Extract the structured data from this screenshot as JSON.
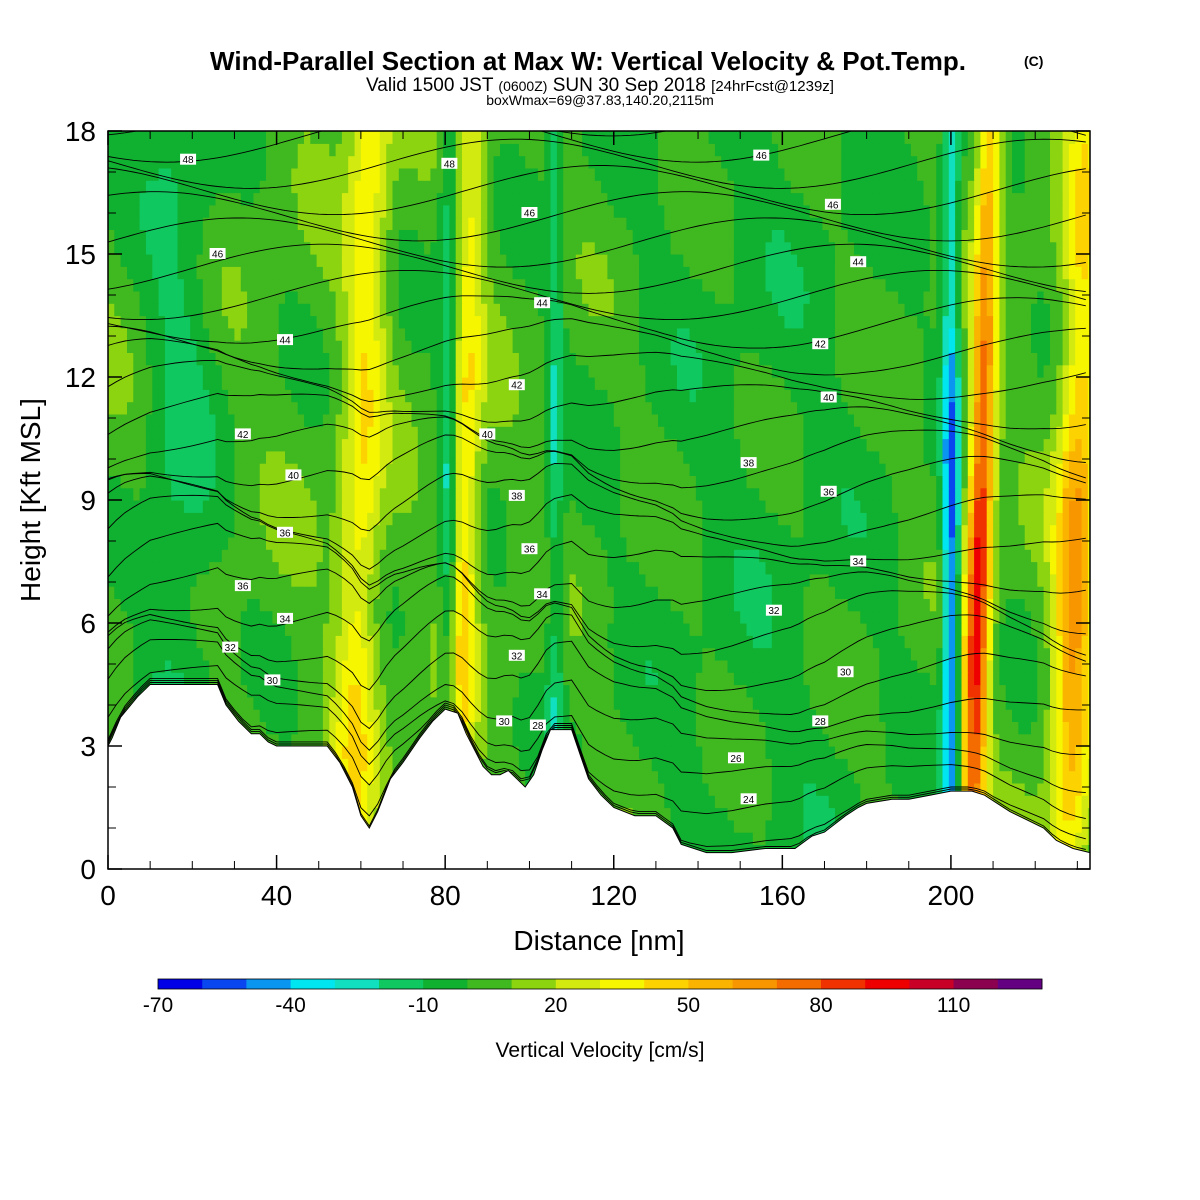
{
  "chart_data": {
    "type": "heatmap",
    "title": "Wind-Parallel Section at Max W: Vertical Velocity & Pot.Temp.",
    "title_mark": "(C)",
    "subtitle_parts": [
      "Valid 1500 JST",
      "(0600Z)",
      "SUN 30 Sep 2018",
      "[24hrFcst@1239z]"
    ],
    "subtitle2": "boxWmax=69@37.83,140.20,2115m",
    "xlabel": "Distance [nm]",
    "ylabel": "Height [Kft MSL]",
    "xlim": [
      0,
      233
    ],
    "ylim": [
      0,
      18
    ],
    "x_ticks": [
      "0",
      "40",
      "80",
      "120",
      "160",
      "200"
    ],
    "y_ticks": [
      "0",
      "3",
      "6",
      "9",
      "12",
      "15",
      "18"
    ],
    "colorbar": {
      "label": "Vertical Velocity [cm/s]",
      "tick_labels": [
        "-70",
        "-40",
        "-10",
        "20",
        "50",
        "80",
        "110"
      ],
      "colors": [
        "#0000e6",
        "#0a46f0",
        "#0a96f0",
        "#00e6f0",
        "#10e0c0",
        "#10c860",
        "#10b030",
        "#40b820",
        "#8cd410",
        "#d2ea10",
        "#f6f600",
        "#fcd200",
        "#fab400",
        "#f89600",
        "#f46c00",
        "#f03200",
        "#ee0000",
        "#c80028",
        "#8c0050",
        "#640082"
      ],
      "first_value": -70,
      "step": 10
    },
    "w_features": [
      {
        "x": 84,
        "w": 4,
        "amp": 48
      },
      {
        "x": 60,
        "w": 5,
        "amp": 32
      },
      {
        "x": 81,
        "w": 2.5,
        "amp": -45
      },
      {
        "x": 106,
        "w": 2,
        "amp": -20
      },
      {
        "x": 207,
        "w": 3,
        "amp": 92
      },
      {
        "x": 200,
        "w": 2,
        "amp": -58
      },
      {
        "x": 230,
        "w": 5,
        "amp": 58
      },
      {
        "x": 17,
        "w": 9,
        "amp": -16
      },
      {
        "x": 155,
        "w": 40,
        "amp": -8
      }
    ],
    "terrain": [
      [
        0,
        3.0
      ],
      [
        1,
        3.2
      ],
      [
        3,
        3.7
      ],
      [
        7,
        4.2
      ],
      [
        10,
        4.5
      ],
      [
        26,
        4.5
      ],
      [
        28,
        4.0
      ],
      [
        31,
        3.6
      ],
      [
        34,
        3.3
      ],
      [
        36,
        3.3
      ],
      [
        38,
        3.1
      ],
      [
        40,
        3.0
      ],
      [
        52,
        3.0
      ],
      [
        55,
        2.6
      ],
      [
        58,
        2.0
      ],
      [
        60,
        1.3
      ],
      [
        62,
        1.0
      ],
      [
        64,
        1.4
      ],
      [
        67,
        2.2
      ],
      [
        70,
        2.6
      ],
      [
        74,
        3.2
      ],
      [
        77,
        3.6
      ],
      [
        80,
        3.9
      ],
      [
        83,
        3.8
      ],
      [
        85,
        3.3
      ],
      [
        87,
        2.9
      ],
      [
        89,
        2.5
      ],
      [
        91,
        2.3
      ],
      [
        93,
        2.3
      ],
      [
        95,
        2.4
      ],
      [
        97,
        2.2
      ],
      [
        99,
        2.0
      ],
      [
        101,
        2.3
      ],
      [
        103,
        2.9
      ],
      [
        105,
        3.4
      ],
      [
        110,
        3.4
      ],
      [
        112,
        2.8
      ],
      [
        114,
        2.2
      ],
      [
        117,
        1.8
      ],
      [
        120,
        1.5
      ],
      [
        125,
        1.3
      ],
      [
        130,
        1.3
      ],
      [
        134,
        1.0
      ],
      [
        136,
        0.6
      ],
      [
        142,
        0.4
      ],
      [
        148,
        0.4
      ],
      [
        156,
        0.5
      ],
      [
        163,
        0.5
      ],
      [
        167,
        0.8
      ],
      [
        170,
        0.9
      ],
      [
        175,
        1.3
      ],
      [
        178,
        1.5
      ],
      [
        180,
        1.6
      ],
      [
        186,
        1.7
      ],
      [
        190,
        1.7
      ],
      [
        195,
        1.8
      ],
      [
        200,
        1.9
      ],
      [
        205,
        1.9
      ],
      [
        208,
        1.8
      ],
      [
        211,
        1.6
      ],
      [
        214,
        1.4
      ],
      [
        218,
        1.2
      ],
      [
        222,
        1.0
      ],
      [
        225,
        0.7
      ],
      [
        229,
        0.5
      ],
      [
        233,
        0.4
      ]
    ],
    "isentropes": [
      22,
      23,
      24,
      25,
      26,
      27,
      28,
      29,
      30,
      31,
      32,
      33,
      34,
      35,
      36,
      37,
      38,
      39,
      40,
      41,
      42,
      43,
      44,
      45,
      46,
      47,
      48,
      49
    ],
    "isentrope_labels": [
      {
        "t": "48",
        "x": 19,
        "y": 17.3
      },
      {
        "t": "48",
        "x": 81,
        "y": 17.2
      },
      {
        "t": "46",
        "x": 155,
        "y": 17.4
      },
      {
        "t": "46",
        "x": 100,
        "y": 16.0
      },
      {
        "t": "46",
        "x": 172,
        "y": 16.2
      },
      {
        "t": "46",
        "x": 26,
        "y": 15.0
      },
      {
        "t": "44",
        "x": 178,
        "y": 14.8
      },
      {
        "t": "44",
        "x": 103,
        "y": 13.8
      },
      {
        "t": "44",
        "x": 42,
        "y": 12.9
      },
      {
        "t": "42",
        "x": 169,
        "y": 12.8
      },
      {
        "t": "42",
        "x": 97,
        "y": 11.8
      },
      {
        "t": "40",
        "x": 171,
        "y": 11.5
      },
      {
        "t": "42",
        "x": 32,
        "y": 10.6
      },
      {
        "t": "40",
        "x": 90,
        "y": 10.6
      },
      {
        "t": "38",
        "x": 152,
        "y": 9.9
      },
      {
        "t": "40",
        "x": 44,
        "y": 9.6
      },
      {
        "t": "36",
        "x": 171,
        "y": 9.2
      },
      {
        "t": "38",
        "x": 97,
        "y": 9.1
      },
      {
        "t": "36",
        "x": 42,
        "y": 8.2
      },
      {
        "t": "36",
        "x": 100,
        "y": 7.8
      },
      {
        "t": "34",
        "x": 178,
        "y": 7.5
      },
      {
        "t": "36",
        "x": 32,
        "y": 6.9
      },
      {
        "t": "34",
        "x": 103,
        "y": 6.7
      },
      {
        "t": "32",
        "x": 158,
        "y": 6.3
      },
      {
        "t": "34",
        "x": 42,
        "y": 6.1
      },
      {
        "t": "32",
        "x": 29,
        "y": 5.4
      },
      {
        "t": "32",
        "x": 97,
        "y": 5.2
      },
      {
        "t": "30",
        "x": 175,
        "y": 4.8
      },
      {
        "t": "30",
        "x": 39,
        "y": 4.6
      },
      {
        "t": "28",
        "x": 169,
        "y": 3.6
      },
      {
        "t": "30",
        "x": 94,
        "y": 3.6
      },
      {
        "t": "28",
        "x": 102,
        "y": 3.5
      },
      {
        "t": "26",
        "x": 149,
        "y": 2.7
      },
      {
        "t": "24",
        "x": 152,
        "y": 1.7
      }
    ]
  }
}
